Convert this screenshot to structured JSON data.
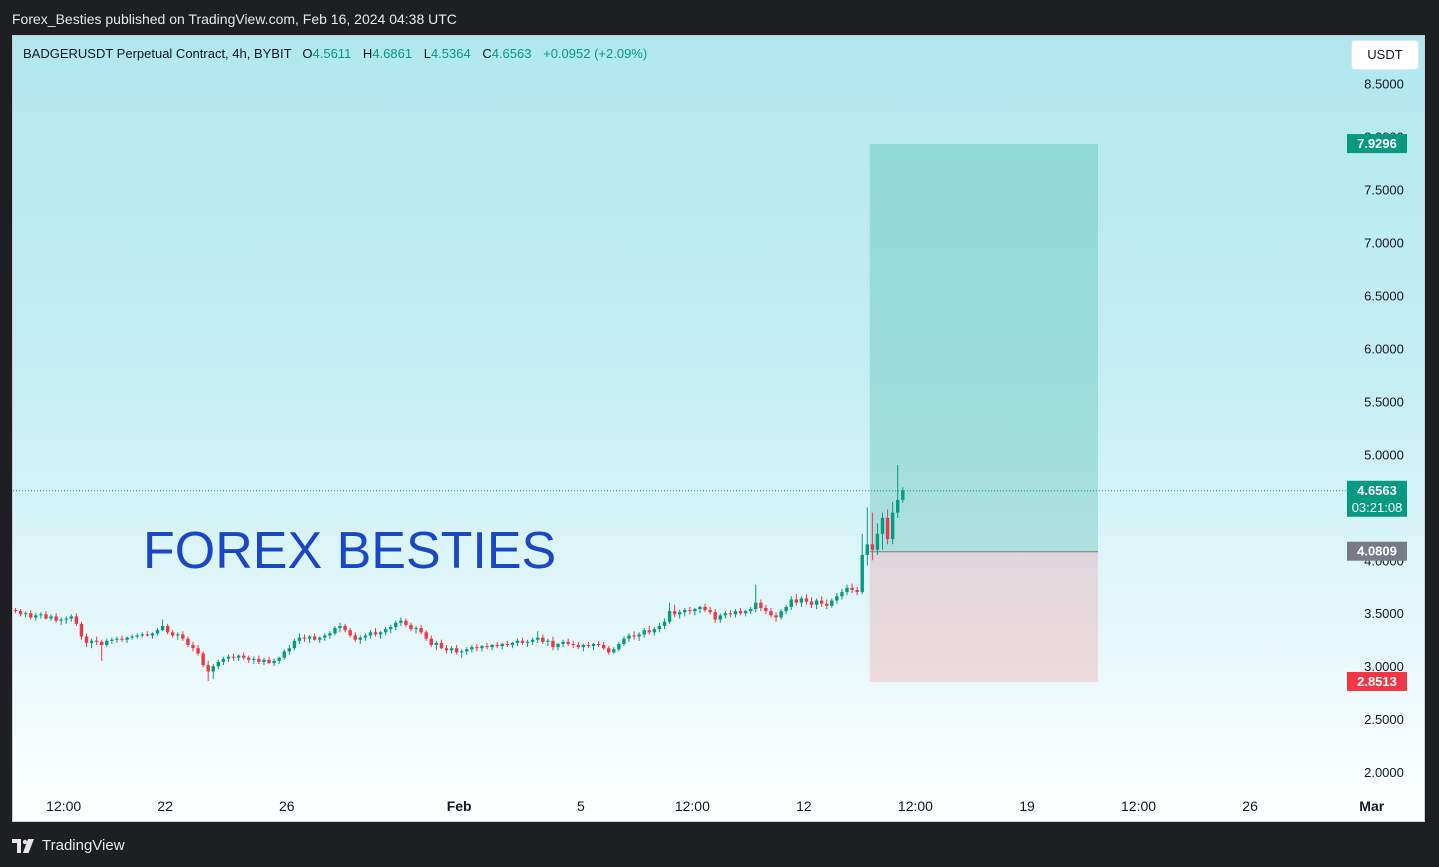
{
  "header": {
    "publish_text": "Forex_Besties published on TradingView.com, Feb 16, 2024 04:38 UTC"
  },
  "legend": {
    "symbol": "BADGERUSDT Perpetual Contract, 4h, BYBIT",
    "o_label": "O",
    "o_value": "4.5611",
    "h_label": "H",
    "h_value": "4.6861",
    "l_label": "L",
    "l_value": "4.5364",
    "c_label": "C",
    "c_value": "4.6563",
    "change": "+0.0952 (+2.09%)"
  },
  "currency_button": "USDT",
  "watermark": "FOREX BESTIES",
  "footer": {
    "brand": "TradingView"
  },
  "colors": {
    "up": "#089981",
    "down": "#f23645",
    "target": "#089981",
    "stop": "#f23645",
    "entry": "#787b86"
  },
  "chart_data": {
    "type": "candlestick",
    "title": "BADGERUSDT Perpetual Contract, 4h, BYBIT",
    "y_ticks": [
      "8.5000",
      "8.0000",
      "7.5000",
      "7.0000",
      "6.5000",
      "6.0000",
      "5.5000",
      "5.0000",
      "4.5000",
      "4.0000",
      "3.5000",
      "3.0000",
      "2.5000",
      "2.0000"
    ],
    "y_tick_values": [
      8.5,
      8.0,
      7.5,
      7.0,
      6.5,
      6.0,
      5.5,
      5.0,
      4.5,
      4.0,
      3.5,
      3.0,
      2.5,
      2.0
    ],
    "ylim": [
      1.85,
      8.95
    ],
    "x_ticks": [
      {
        "label": "12:00",
        "bold": false,
        "bar": 10
      },
      {
        "label": "22",
        "bold": false,
        "bar": 30
      },
      {
        "label": "26",
        "bold": false,
        "bar": 54
      },
      {
        "label": "Feb",
        "bold": true,
        "bar": 88
      },
      {
        "label": "5",
        "bold": false,
        "bar": 112
      },
      {
        "label": "12:00",
        "bold": false,
        "bar": 134
      },
      {
        "label": "12",
        "bold": false,
        "bar": 156
      },
      {
        "label": "12:00",
        "bold": false,
        "bar": 178
      },
      {
        "label": "19",
        "bold": false,
        "bar": 200
      },
      {
        "label": "12:00",
        "bold": false,
        "bar": 222
      },
      {
        "label": "26",
        "bold": false,
        "bar": 244
      },
      {
        "label": "Mar",
        "bold": true,
        "bar": 268
      }
    ],
    "price_line": {
      "value": 4.6563,
      "label": "4.6563",
      "countdown": "03:21:08"
    },
    "position": {
      "target": 7.9296,
      "target_label": "7.9296",
      "entry": 4.0809,
      "entry_label": "4.0809",
      "stop": 2.8513,
      "stop_label": "2.8513",
      "start_bar": 169,
      "end_bar": 214
    },
    "candles": [
      [
        3.53,
        3.55,
        3.5,
        3.52
      ],
      [
        3.52,
        3.54,
        3.47,
        3.49
      ],
      [
        3.49,
        3.52,
        3.46,
        3.5
      ],
      [
        3.5,
        3.53,
        3.44,
        3.46
      ],
      [
        3.46,
        3.5,
        3.43,
        3.48
      ],
      [
        3.48,
        3.51,
        3.45,
        3.49
      ],
      [
        3.49,
        3.52,
        3.44,
        3.45
      ],
      [
        3.45,
        3.49,
        3.43,
        3.47
      ],
      [
        3.47,
        3.5,
        3.41,
        3.43
      ],
      [
        3.43,
        3.46,
        3.39,
        3.44
      ],
      [
        3.44,
        3.47,
        3.4,
        3.45
      ],
      [
        3.45,
        3.49,
        3.42,
        3.47
      ],
      [
        3.47,
        3.5,
        3.38,
        3.4
      ],
      [
        3.4,
        3.42,
        3.25,
        3.28
      ],
      [
        3.28,
        3.31,
        3.18,
        3.22
      ],
      [
        3.22,
        3.26,
        3.17,
        3.24
      ],
      [
        3.24,
        3.28,
        3.2,
        3.23
      ],
      [
        3.23,
        3.25,
        3.05,
        3.2
      ],
      [
        3.2,
        3.26,
        3.18,
        3.24
      ],
      [
        3.24,
        3.27,
        3.21,
        3.25
      ],
      [
        3.25,
        3.28,
        3.22,
        3.26
      ],
      [
        3.26,
        3.29,
        3.23,
        3.25
      ],
      [
        3.25,
        3.28,
        3.22,
        3.27
      ],
      [
        3.27,
        3.3,
        3.25,
        3.28
      ],
      [
        3.28,
        3.31,
        3.26,
        3.29
      ],
      [
        3.29,
        3.32,
        3.27,
        3.3
      ],
      [
        3.3,
        3.33,
        3.28,
        3.29
      ],
      [
        3.29,
        3.32,
        3.26,
        3.31
      ],
      [
        3.31,
        3.36,
        3.29,
        3.34
      ],
      [
        3.34,
        3.44,
        3.33,
        3.38
      ],
      [
        3.38,
        3.4,
        3.3,
        3.32
      ],
      [
        3.32,
        3.34,
        3.27,
        3.29
      ],
      [
        3.29,
        3.32,
        3.25,
        3.3
      ],
      [
        3.3,
        3.33,
        3.24,
        3.26
      ],
      [
        3.26,
        3.28,
        3.18,
        3.2
      ],
      [
        3.2,
        3.23,
        3.14,
        3.17
      ],
      [
        3.17,
        3.2,
        3.1,
        3.12
      ],
      [
        3.12,
        3.14,
        2.99,
        3.01
      ],
      [
        3.01,
        3.05,
        2.86,
        2.95
      ],
      [
        2.95,
        3.02,
        2.88,
        3.0
      ],
      [
        3.0,
        3.06,
        2.97,
        3.04
      ],
      [
        3.04,
        3.09,
        3.01,
        3.07
      ],
      [
        3.07,
        3.11,
        3.04,
        3.09
      ],
      [
        3.09,
        3.12,
        3.05,
        3.08
      ],
      [
        3.08,
        3.11,
        3.05,
        3.1
      ],
      [
        3.1,
        3.13,
        3.06,
        3.08
      ],
      [
        3.08,
        3.1,
        3.03,
        3.06
      ],
      [
        3.06,
        3.09,
        3.02,
        3.07
      ],
      [
        3.07,
        3.1,
        3.02,
        3.04
      ],
      [
        3.04,
        3.08,
        3.01,
        3.06
      ],
      [
        3.06,
        3.09,
        3.02,
        3.03
      ],
      [
        3.03,
        3.07,
        3.0,
        3.05
      ],
      [
        3.05,
        3.09,
        3.02,
        3.08
      ],
      [
        3.08,
        3.16,
        3.06,
        3.14
      ],
      [
        3.14,
        3.2,
        3.11,
        3.17
      ],
      [
        3.17,
        3.26,
        3.15,
        3.24
      ],
      [
        3.24,
        3.31,
        3.21,
        3.27
      ],
      [
        3.27,
        3.3,
        3.23,
        3.26
      ],
      [
        3.26,
        3.29,
        3.22,
        3.28
      ],
      [
        3.28,
        3.31,
        3.24,
        3.25
      ],
      [
        3.25,
        3.28,
        3.22,
        3.27
      ],
      [
        3.27,
        3.31,
        3.24,
        3.29
      ],
      [
        3.29,
        3.33,
        3.26,
        3.31
      ],
      [
        3.31,
        3.38,
        3.29,
        3.36
      ],
      [
        3.36,
        3.41,
        3.32,
        3.38
      ],
      [
        3.38,
        3.4,
        3.32,
        3.34
      ],
      [
        3.34,
        3.36,
        3.27,
        3.29
      ],
      [
        3.29,
        3.32,
        3.23,
        3.25
      ],
      [
        3.25,
        3.29,
        3.21,
        3.27
      ],
      [
        3.27,
        3.31,
        3.24,
        3.29
      ],
      [
        3.29,
        3.34,
        3.26,
        3.32
      ],
      [
        3.32,
        3.36,
        3.28,
        3.3
      ],
      [
        3.3,
        3.33,
        3.26,
        3.32
      ],
      [
        3.32,
        3.37,
        3.29,
        3.35
      ],
      [
        3.35,
        3.39,
        3.31,
        3.37
      ],
      [
        3.37,
        3.43,
        3.34,
        3.41
      ],
      [
        3.41,
        3.46,
        3.38,
        3.43
      ],
      [
        3.43,
        3.45,
        3.37,
        3.39
      ],
      [
        3.39,
        3.41,
        3.33,
        3.35
      ],
      [
        3.35,
        3.38,
        3.31,
        3.36
      ],
      [
        3.36,
        3.39,
        3.3,
        3.32
      ],
      [
        3.32,
        3.34,
        3.24,
        3.26
      ],
      [
        3.26,
        3.29,
        3.18,
        3.2
      ],
      [
        3.2,
        3.24,
        3.15,
        3.22
      ],
      [
        3.22,
        3.25,
        3.16,
        3.17
      ],
      [
        3.17,
        3.2,
        3.12,
        3.15
      ],
      [
        3.15,
        3.19,
        3.12,
        3.17
      ],
      [
        3.17,
        3.2,
        3.11,
        3.13
      ],
      [
        3.13,
        3.16,
        3.08,
        3.14
      ],
      [
        3.14,
        3.18,
        3.11,
        3.16
      ],
      [
        3.16,
        3.2,
        3.13,
        3.18
      ],
      [
        3.18,
        3.21,
        3.14,
        3.17
      ],
      [
        3.17,
        3.2,
        3.14,
        3.19
      ],
      [
        3.19,
        3.22,
        3.16,
        3.18
      ],
      [
        3.18,
        3.21,
        3.15,
        3.2
      ],
      [
        3.2,
        3.23,
        3.17,
        3.19
      ],
      [
        3.19,
        3.22,
        3.16,
        3.21
      ],
      [
        3.21,
        3.24,
        3.18,
        3.2
      ],
      [
        3.2,
        3.23,
        3.17,
        3.22
      ],
      [
        3.22,
        3.26,
        3.19,
        3.24
      ],
      [
        3.24,
        3.27,
        3.2,
        3.22
      ],
      [
        3.22,
        3.25,
        3.18,
        3.23
      ],
      [
        3.23,
        3.27,
        3.2,
        3.25
      ],
      [
        3.25,
        3.33,
        3.22,
        3.27
      ],
      [
        3.27,
        3.3,
        3.21,
        3.23
      ],
      [
        3.23,
        3.26,
        3.19,
        3.24
      ],
      [
        3.24,
        3.28,
        3.15,
        3.18
      ],
      [
        3.18,
        3.22,
        3.15,
        3.21
      ],
      [
        3.21,
        3.25,
        3.18,
        3.23
      ],
      [
        3.23,
        3.26,
        3.19,
        3.21
      ],
      [
        3.21,
        3.24,
        3.17,
        3.2
      ],
      [
        3.2,
        3.23,
        3.16,
        3.18
      ],
      [
        3.18,
        3.21,
        3.14,
        3.2
      ],
      [
        3.2,
        3.23,
        3.17,
        3.19
      ],
      [
        3.19,
        3.22,
        3.15,
        3.21
      ],
      [
        3.21,
        3.24,
        3.18,
        3.2
      ],
      [
        3.2,
        3.23,
        3.15,
        3.17
      ],
      [
        3.17,
        3.19,
        3.11,
        3.13
      ],
      [
        3.13,
        3.18,
        3.12,
        3.16
      ],
      [
        3.16,
        3.23,
        3.14,
        3.21
      ],
      [
        3.21,
        3.28,
        3.19,
        3.26
      ],
      [
        3.26,
        3.31,
        3.23,
        3.29
      ],
      [
        3.29,
        3.33,
        3.25,
        3.28
      ],
      [
        3.28,
        3.32,
        3.24,
        3.3
      ],
      [
        3.3,
        3.36,
        3.27,
        3.34
      ],
      [
        3.34,
        3.38,
        3.3,
        3.32
      ],
      [
        3.32,
        3.37,
        3.29,
        3.35
      ],
      [
        3.35,
        3.41,
        3.32,
        3.38
      ],
      [
        3.38,
        3.45,
        3.35,
        3.42
      ],
      [
        3.42,
        3.6,
        3.4,
        3.52
      ],
      [
        3.52,
        3.58,
        3.46,
        3.49
      ],
      [
        3.49,
        3.53,
        3.45,
        3.51
      ],
      [
        3.51,
        3.55,
        3.47,
        3.53
      ],
      [
        3.53,
        3.56,
        3.49,
        3.52
      ],
      [
        3.52,
        3.55,
        3.48,
        3.54
      ],
      [
        3.54,
        3.57,
        3.5,
        3.56
      ],
      [
        3.56,
        3.59,
        3.51,
        3.53
      ],
      [
        3.53,
        3.56,
        3.49,
        3.51
      ],
      [
        3.51,
        3.54,
        3.41,
        3.44
      ],
      [
        3.44,
        3.5,
        3.41,
        3.48
      ],
      [
        3.48,
        3.52,
        3.45,
        3.5
      ],
      [
        3.5,
        3.53,
        3.46,
        3.49
      ],
      [
        3.49,
        3.54,
        3.46,
        3.52
      ],
      [
        3.52,
        3.55,
        3.48,
        3.5
      ],
      [
        3.5,
        3.53,
        3.47,
        3.52
      ],
      [
        3.52,
        3.56,
        3.49,
        3.54
      ],
      [
        3.54,
        3.77,
        3.51,
        3.6
      ],
      [
        3.6,
        3.63,
        3.52,
        3.55
      ],
      [
        3.55,
        3.58,
        3.49,
        3.52
      ],
      [
        3.52,
        3.55,
        3.46,
        3.48
      ],
      [
        3.48,
        3.51,
        3.42,
        3.46
      ],
      [
        3.46,
        3.54,
        3.44,
        3.52
      ],
      [
        3.52,
        3.58,
        3.49,
        3.56
      ],
      [
        3.56,
        3.66,
        3.53,
        3.63
      ],
      [
        3.63,
        3.68,
        3.57,
        3.6
      ],
      [
        3.6,
        3.66,
        3.56,
        3.64
      ],
      [
        3.64,
        3.68,
        3.58,
        3.61
      ],
      [
        3.61,
        3.65,
        3.55,
        3.58
      ],
      [
        3.58,
        3.64,
        3.54,
        3.62
      ],
      [
        3.62,
        3.66,
        3.56,
        3.59
      ],
      [
        3.59,
        3.63,
        3.54,
        3.57
      ],
      [
        3.57,
        3.64,
        3.55,
        3.62
      ],
      [
        3.62,
        3.69,
        3.59,
        3.66
      ],
      [
        3.66,
        3.73,
        3.63,
        3.7
      ],
      [
        3.7,
        3.77,
        3.67,
        3.74
      ],
      [
        3.74,
        3.78,
        3.69,
        3.72
      ],
      [
        3.72,
        3.75,
        3.67,
        3.7
      ],
      [
        3.7,
        4.25,
        3.68,
        4.05
      ],
      [
        4.05,
        4.5,
        3.95,
        4.15
      ],
      [
        4.15,
        4.45,
        4.0,
        4.1
      ],
      [
        4.1,
        4.35,
        4.05,
        4.25
      ],
      [
        4.25,
        4.45,
        4.1,
        4.4
      ],
      [
        4.4,
        4.48,
        4.15,
        4.2
      ],
      [
        4.2,
        4.55,
        4.15,
        4.45
      ],
      [
        4.45,
        4.9,
        4.4,
        4.57
      ],
      [
        4.57,
        4.69,
        4.54,
        4.66
      ]
    ]
  }
}
